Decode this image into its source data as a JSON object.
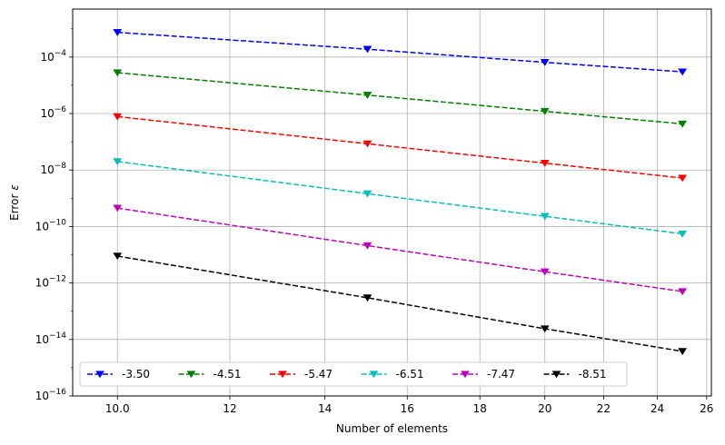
{
  "chart_data": {
    "type": "line",
    "xlabel": "Number of elements",
    "ylabel": "Error",
    "ylabel_symbol": "ε",
    "xscale": "log",
    "yscale": "log",
    "xlim": [
      9.3,
      26.2
    ],
    "ylim": [
      1e-16,
      0.005
    ],
    "x_ticks": [
      10,
      12,
      14,
      16,
      18,
      20,
      22,
      24,
      26
    ],
    "x_tick_labels": [
      "10.0",
      "12",
      "14",
      "16",
      "18",
      "20",
      "22",
      "24",
      "26"
    ],
    "y_ticks": [
      1e-16,
      1e-14,
      1e-12,
      1e-10,
      1e-08,
      1e-06,
      0.0001
    ],
    "y_tick_labels": [
      {
        "base": "10",
        "exp": "−16"
      },
      {
        "base": "10",
        "exp": "−14"
      },
      {
        "base": "10",
        "exp": "−12"
      },
      {
        "base": "10",
        "exp": "−10"
      },
      {
        "base": "10",
        "exp": "−8"
      },
      {
        "base": "10",
        "exp": "−6"
      },
      {
        "base": "10",
        "exp": "−4"
      }
    ],
    "grid": true,
    "legend_placement": "lower-left",
    "legend_columns": 6,
    "x": [
      10,
      15,
      20,
      25
    ],
    "series": [
      {
        "name": "-3.50",
        "color": "#0000ff",
        "values": [
          0.00075,
          0.00019,
          6.5e-05,
          3e-05
        ]
      },
      {
        "name": "-4.51",
        "color": "#008000",
        "values": [
          2.8e-05,
          4.5e-06,
          1.2e-06,
          4.3e-07
        ]
      },
      {
        "name": "-5.47",
        "color": "#ff0000",
        "values": [
          7.8e-07,
          8.5e-08,
          1.75e-08,
          5.2e-09
        ]
      },
      {
        "name": "-6.51",
        "color": "#00bfbf",
        "values": [
          2e-08,
          1.45e-09,
          2.3e-10,
          5.5e-11
        ]
      },
      {
        "name": "-7.47",
        "color": "#bf00bf",
        "values": [
          4.5e-10,
          2.1e-11,
          2.5e-12,
          5e-13
        ]
      },
      {
        "name": "-8.51",
        "color": "#000000",
        "values": [
          9e-12,
          3e-13,
          2.4e-14,
          3.8e-15
        ]
      }
    ]
  }
}
